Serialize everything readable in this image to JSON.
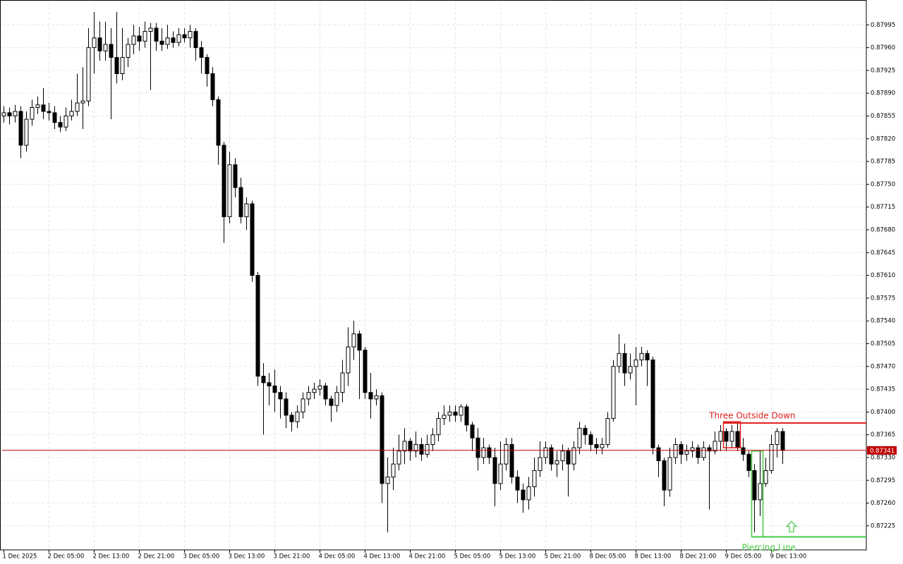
{
  "chart_data": {
    "type": "candlestick",
    "categories": [
      "1 Dec 2025",
      null,
      null,
      null,
      null,
      null,
      null,
      null,
      "2 Dec 05:00",
      null,
      null,
      null,
      null,
      null,
      null,
      null,
      "2 Dec 13:00",
      null,
      null,
      null,
      null,
      null,
      null,
      null,
      "2 Dec 21:00",
      null,
      null,
      null,
      null,
      null,
      null,
      null,
      "3 Dec 05:00",
      null,
      null,
      null,
      null,
      null,
      null,
      null,
      "3 Dec 13:00",
      null,
      null,
      null,
      null,
      null,
      null,
      null,
      "3 Dec 21:00",
      null,
      null,
      null,
      null,
      null,
      null,
      null,
      "4 Dec 05:00",
      null,
      null,
      null,
      null,
      null,
      null,
      null,
      "4 Dec 13:00",
      null,
      null,
      null,
      null,
      null,
      null,
      null,
      "4 Dec 21:00",
      null,
      null,
      null,
      null,
      null,
      null,
      null,
      "5 Dec 05:00",
      null,
      null,
      null,
      null,
      null,
      null,
      null,
      "5 Dec 13:00",
      null,
      null,
      null,
      null,
      null,
      null,
      null,
      "5 Dec 21:00",
      null,
      null,
      null,
      null,
      null,
      null,
      null,
      "8 Dec 05:00",
      null,
      null,
      null,
      null,
      null,
      null,
      null,
      "8 Dec 13:00",
      null,
      null,
      null,
      null,
      null,
      null,
      null,
      "8 Dec 21:00",
      null,
      null,
      null,
      null,
      null,
      null,
      null,
      "9 Dec 05:00",
      null,
      null,
      null,
      null,
      null,
      null,
      null,
      "9 Dec 13:00",
      null,
      null
    ],
    "open": [
      0.87855,
      0.8786,
      0.87855,
      0.87862,
      0.8781,
      0.8785,
      0.87868,
      0.87872,
      0.87862,
      0.8786,
      0.87845,
      0.87838,
      0.87855,
      0.87862,
      0.87875,
      0.87878,
      0.8796,
      0.87975,
      0.87955,
      0.87965,
      0.87945,
      0.8792,
      0.87945,
      0.87965,
      0.87978,
      0.8797,
      0.87985,
      0.8799,
      0.8797,
      0.87965,
      0.87975,
      0.87968,
      0.8798,
      0.87975,
      0.87985,
      0.8796,
      0.87945,
      0.8792,
      0.8788,
      0.8781,
      0.877,
      0.8778,
      0.87745,
      0.877,
      0.8772,
      0.8761,
      0.87455,
      0.87445,
      0.8744,
      0.8743,
      0.8742,
      0.87395,
      0.87385,
      0.874,
      0.8742,
      0.8743,
      0.87435,
      0.8744,
      0.8742,
      0.8741,
      0.8743,
      0.8746,
      0.875,
      0.8752,
      0.87495,
      0.8743,
      0.8742,
      0.87425,
      0.8729,
      0.873,
      0.8732,
      0.8734,
      0.87355,
      0.8734,
      0.8735,
      0.87335,
      0.8735,
      0.87365,
      0.8739,
      0.87395,
      0.874,
      0.87395,
      0.87408,
      0.8738,
      0.8736,
      0.8733,
      0.87345,
      0.8733,
      0.8729,
      0.8732,
      0.8735,
      0.873,
      0.8728,
      0.87265,
      0.87285,
      0.8731,
      0.8733,
      0.87345,
      0.8732,
      0.87325,
      0.8734,
      0.8732,
      0.87345,
      0.87375,
      0.87365,
      0.8735,
      0.87345,
      0.8735,
      0.8739,
      0.8747,
      0.8749,
      0.8746,
      0.8747,
      0.8748,
      0.8749,
      0.8748,
      0.87345,
      0.87325,
      0.8728,
      0.8733,
      0.8735,
      0.87335,
      0.8734,
      0.87345,
      0.8733,
      0.87345,
      0.8734,
      0.87355,
      0.8737,
      0.87355,
      0.8737,
      0.87345,
      0.87335,
      0.8731,
      0.87265,
      0.8729,
      0.8731,
      0.8735,
      0.8737
    ],
    "high": [
      0.8787,
      0.87868,
      0.87872,
      0.8787,
      0.87862,
      0.8788,
      0.87885,
      0.87898,
      0.87875,
      0.8787,
      0.87855,
      0.87868,
      0.8788,
      0.8792,
      0.8793,
      0.8799,
      0.88015,
      0.88,
      0.88,
      0.8799,
      0.88015,
      0.8799,
      0.87975,
      0.87995,
      0.87992,
      0.88,
      0.87998,
      0.87998,
      0.8799,
      0.87995,
      0.87985,
      0.8799,
      0.8799,
      0.87995,
      0.8799,
      0.8797,
      0.8795,
      0.8793,
      0.87885,
      0.87815,
      0.878,
      0.8779,
      0.8776,
      0.8773,
      0.87725,
      0.87615,
      0.87475,
      0.8746,
      0.87465,
      0.8744,
      0.8743,
      0.874,
      0.8741,
      0.8743,
      0.8744,
      0.87445,
      0.8745,
      0.87445,
      0.87425,
      0.8744,
      0.8748,
      0.8753,
      0.8754,
      0.87525,
      0.875,
      0.8746,
      0.87435,
      0.8743,
      0.8733,
      0.87345,
      0.87365,
      0.87375,
      0.8736,
      0.8737,
      0.8736,
      0.87365,
      0.87375,
      0.874,
      0.8741,
      0.8741,
      0.8741,
      0.87412,
      0.87412,
      0.87385,
      0.87375,
      0.8736,
      0.8735,
      0.87345,
      0.87355,
      0.8736,
      0.8736,
      0.8731,
      0.8729,
      0.873,
      0.8733,
      0.87355,
      0.87355,
      0.8735,
      0.8734,
      0.8735,
      0.87345,
      0.87355,
      0.87385,
      0.8738,
      0.8737,
      0.8736,
      0.8736,
      0.874,
      0.8748,
      0.8752,
      0.87505,
      0.8749,
      0.875,
      0.875,
      0.87495,
      0.87485,
      0.8735,
      0.8733,
      0.87345,
      0.8736,
      0.87355,
      0.8735,
      0.87355,
      0.8735,
      0.87355,
      0.8735,
      0.8737,
      0.8738,
      0.87375,
      0.8738,
      0.87385,
      0.8736,
      0.8734,
      0.8732,
      0.8734,
      0.8733,
      0.87365,
      0.87375,
      0.87375
    ],
    "low": [
      0.87845,
      0.87842,
      0.87845,
      0.8779,
      0.878,
      0.8784,
      0.87858,
      0.8785,
      0.87848,
      0.87835,
      0.8783,
      0.87832,
      0.87848,
      0.87855,
      0.87835,
      0.8787,
      0.8792,
      0.8794,
      0.8794,
      0.8785,
      0.87905,
      0.8791,
      0.8793,
      0.8795,
      0.87955,
      0.8796,
      0.87895,
      0.87955,
      0.87955,
      0.87958,
      0.8796,
      0.87962,
      0.87968,
      0.8796,
      0.8794,
      0.8792,
      0.879,
      0.8787,
      0.8778,
      0.8766,
      0.8769,
      0.8773,
      0.8769,
      0.8768,
      0.876,
      0.8744,
      0.87365,
      0.8741,
      0.874,
      0.8739,
      0.87375,
      0.8737,
      0.87375,
      0.8739,
      0.8741,
      0.8742,
      0.87425,
      0.8741,
      0.87385,
      0.874,
      0.87415,
      0.8744,
      0.8748,
      0.8742,
      0.8742,
      0.8739,
      0.8741,
      0.8726,
      0.87215,
      0.8728,
      0.8731,
      0.8732,
      0.87325,
      0.8733,
      0.87325,
      0.8733,
      0.8734,
      0.87355,
      0.8738,
      0.87385,
      0.87385,
      0.87385,
      0.8737,
      0.8734,
      0.8731,
      0.8732,
      0.8732,
      0.87255,
      0.8728,
      0.8731,
      0.8729,
      0.8726,
      0.87245,
      0.8725,
      0.8727,
      0.873,
      0.8732,
      0.8731,
      0.873,
      0.8731,
      0.8727,
      0.8731,
      0.87335,
      0.8735,
      0.8734,
      0.87335,
      0.87335,
      0.87345,
      0.87385,
      0.8746,
      0.8744,
      0.8745,
      0.8741,
      0.8747,
      0.8744,
      0.87335,
      0.873,
      0.87255,
      0.8727,
      0.8732,
      0.8732,
      0.87325,
      0.8733,
      0.8732,
      0.87325,
      0.8725,
      0.87335,
      0.8734,
      0.8734,
      0.87345,
      0.8734,
      0.87325,
      0.873,
      0.87215,
      0.8724,
      0.87285,
      0.87305,
      0.8733,
      0.8732
    ],
    "close": [
      0.8786,
      0.87855,
      0.87862,
      0.8781,
      0.8785,
      0.87868,
      0.87872,
      0.87862,
      0.8786,
      0.87845,
      0.87838,
      0.87855,
      0.87862,
      0.87875,
      0.87878,
      0.8796,
      0.87975,
      0.87955,
      0.87965,
      0.87945,
      0.8792,
      0.87945,
      0.87965,
      0.87978,
      0.8797,
      0.87985,
      0.8799,
      0.8797,
      0.87965,
      0.87975,
      0.87968,
      0.8798,
      0.87975,
      0.87985,
      0.8796,
      0.87945,
      0.8792,
      0.8788,
      0.8781,
      0.877,
      0.8778,
      0.87745,
      0.877,
      0.8772,
      0.8761,
      0.87455,
      0.87445,
      0.8744,
      0.8743,
      0.8742,
      0.87395,
      0.87385,
      0.874,
      0.8742,
      0.8743,
      0.87435,
      0.8744,
      0.8742,
      0.8741,
      0.8743,
      0.8746,
      0.875,
      0.8752,
      0.87495,
      0.8743,
      0.8742,
      0.87425,
      0.8729,
      0.873,
      0.8732,
      0.8734,
      0.87355,
      0.8734,
      0.8735,
      0.87335,
      0.8735,
      0.87365,
      0.8739,
      0.87395,
      0.874,
      0.87395,
      0.87408,
      0.8738,
      0.8736,
      0.8733,
      0.87345,
      0.8733,
      0.8729,
      0.8732,
      0.8735,
      0.873,
      0.8728,
      0.87265,
      0.87285,
      0.8731,
      0.8733,
      0.87345,
      0.8732,
      0.87325,
      0.8734,
      0.8732,
      0.87345,
      0.87375,
      0.87365,
      0.8735,
      0.87345,
      0.8735,
      0.8739,
      0.8747,
      0.8749,
      0.8746,
      0.8747,
      0.8748,
      0.8749,
      0.8748,
      0.87345,
      0.87325,
      0.8728,
      0.8733,
      0.8735,
      0.87335,
      0.8734,
      0.87345,
      0.8733,
      0.87345,
      0.8734,
      0.87355,
      0.8737,
      0.87355,
      0.8737,
      0.87345,
      0.87335,
      0.8731,
      0.87265,
      0.8729,
      0.8731,
      0.8735,
      0.8737,
      0.87341
    ],
    "up_color": "#ffffff",
    "down_color": "#000000",
    "ylim": [
      0.87188,
      0.8803
    ],
    "yticks": [
      0.87225,
      {
        "value": 0.8726,
        "label": "0.87260"
      },
      0.87295,
      {
        "value": 0.8733,
        "label": "0.87330"
      },
      0.87365,
      {
        "value": 0.874,
        "label": "0.87400"
      },
      0.87435,
      {
        "value": 0.8747,
        "label": "0.87470"
      },
      0.87505,
      {
        "value": 0.8754,
        "label": "0.87540"
      },
      0.87575,
      {
        "value": 0.8761,
        "label": "0.87610"
      },
      0.87645,
      {
        "value": 0.8768,
        "label": "0.87680"
      },
      0.87715,
      {
        "value": 0.8775,
        "label": "0.87750"
      },
      0.87785,
      {
        "value": 0.8782,
        "label": "0.87820"
      },
      0.87855,
      {
        "value": 0.8789,
        "label": "0.87890"
      },
      0.87925,
      {
        "value": 0.8796,
        "label": "0.87960"
      },
      0.87995
    ],
    "grid": true,
    "current_price": 0.87341,
    "current_price_color": "#c00000",
    "annotations": [
      {
        "text": "Three Outside Down",
        "color": "#e02020",
        "start": 128,
        "end": 130,
        "box": [
          0.87345,
          0.87385
        ],
        "level": 0.87383
      },
      {
        "text": "Piercing Line",
        "color": "#44cc44",
        "start": 133,
        "end": 134,
        "box": [
          0.87208,
          0.8734
        ],
        "level": 0.87208
      }
    ]
  }
}
